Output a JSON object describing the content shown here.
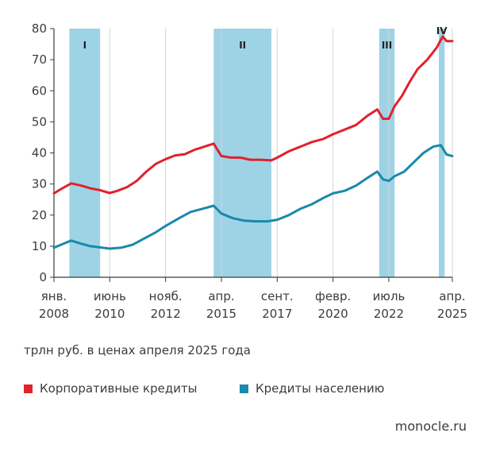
{
  "colors": {
    "corporate": "#e0222d",
    "retail": "#1a89aa",
    "shade": "#9ed3e6",
    "axis": "#3c3c3c"
  },
  "unit_label": "трлн руб. в ценах апреля 2025 года",
  "legend": [
    {
      "label": "Корпоративные кредиты",
      "color": "#e0222d"
    },
    {
      "label": "Кредиты населению",
      "color": "#1a89aa"
    }
  ],
  "source": "monocle.ru",
  "chart_data": {
    "type": "line",
    "title": "",
    "xlabel": "",
    "ylabel": "",
    "xlim": [
      "2008-01",
      "2025-04"
    ],
    "ylim": [
      0,
      80
    ],
    "yticks": [
      0,
      10,
      20,
      30,
      40,
      50,
      60,
      70,
      80
    ],
    "grid": "vertical",
    "xticks": [
      {
        "date": "2008-01",
        "line1": "янв.",
        "line2": "2008"
      },
      {
        "date": "2010-06",
        "line1": "июнь",
        "line2": "2010"
      },
      {
        "date": "2012-11",
        "line1": "нояб.",
        "line2": "2012"
      },
      {
        "date": "2015-04",
        "line1": "апр.",
        "line2": "2015"
      },
      {
        "date": "2017-09",
        "line1": "сент.",
        "line2": "2017"
      },
      {
        "date": "2020-02",
        "line1": "февр.",
        "line2": "2020"
      },
      {
        "date": "2022-07",
        "line1": "июль",
        "line2": "2022"
      },
      {
        "date": "2025-04",
        "line1": "апр.",
        "line2": "2025"
      }
    ],
    "shaded_periods": [
      {
        "label": "I",
        "start": "2008-09",
        "end": "2010-01"
      },
      {
        "label": "II",
        "start": "2014-12",
        "end": "2017-06"
      },
      {
        "label": "III",
        "start": "2022-02",
        "end": "2022-10"
      },
      {
        "label": "IV",
        "start": "2024-09",
        "end": "2024-12"
      }
    ],
    "series": [
      {
        "name": "Корпоративные кредиты",
        "color": "#e0222d",
        "points": [
          [
            "2008-01",
            27.0
          ],
          [
            "2008-05",
            28.5
          ],
          [
            "2008-10",
            30.2
          ],
          [
            "2009-03",
            29.5
          ],
          [
            "2009-08",
            28.6
          ],
          [
            "2010-01",
            28.0
          ],
          [
            "2010-06",
            27.1
          ],
          [
            "2010-10",
            27.8
          ],
          [
            "2011-03",
            29.0
          ],
          [
            "2011-08",
            31.0
          ],
          [
            "2012-01",
            34.0
          ],
          [
            "2012-06",
            36.5
          ],
          [
            "2012-11",
            38.0
          ],
          [
            "2013-04",
            39.2
          ],
          [
            "2013-09",
            39.6
          ],
          [
            "2014-02",
            41.0
          ],
          [
            "2014-07",
            42.0
          ],
          [
            "2014-12",
            43.0
          ],
          [
            "2015-04",
            39.0
          ],
          [
            "2015-09",
            38.5
          ],
          [
            "2016-02",
            38.5
          ],
          [
            "2016-07",
            37.8
          ],
          [
            "2016-12",
            37.8
          ],
          [
            "2017-06",
            37.6
          ],
          [
            "2017-09",
            38.5
          ],
          [
            "2018-03",
            40.5
          ],
          [
            "2018-09",
            42.0
          ],
          [
            "2019-03",
            43.5
          ],
          [
            "2019-09",
            44.5
          ],
          [
            "2020-02",
            46.0
          ],
          [
            "2020-08",
            47.5
          ],
          [
            "2021-02",
            49.0
          ],
          [
            "2021-08",
            52.0
          ],
          [
            "2022-01",
            54.0
          ],
          [
            "2022-04",
            51.0
          ],
          [
            "2022-07",
            51.0
          ],
          [
            "2022-10",
            55.0
          ],
          [
            "2023-02",
            58.5
          ],
          [
            "2023-06",
            63.0
          ],
          [
            "2023-10",
            67.0
          ],
          [
            "2024-03",
            70.0
          ],
          [
            "2024-08",
            74.0
          ],
          [
            "2024-11",
            77.5
          ],
          [
            "2025-01",
            76.0
          ],
          [
            "2025-04",
            76.0
          ]
        ]
      },
      {
        "name": "Кредиты населению",
        "color": "#1a89aa",
        "points": [
          [
            "2008-01",
            9.5
          ],
          [
            "2008-06",
            10.8
          ],
          [
            "2008-10",
            11.8
          ],
          [
            "2009-03",
            10.8
          ],
          [
            "2009-08",
            10.0
          ],
          [
            "2010-01",
            9.6
          ],
          [
            "2010-06",
            9.2
          ],
          [
            "2010-12",
            9.5
          ],
          [
            "2011-06",
            10.5
          ],
          [
            "2011-12",
            12.5
          ],
          [
            "2012-06",
            14.5
          ],
          [
            "2012-11",
            16.5
          ],
          [
            "2013-06",
            19.0
          ],
          [
            "2013-12",
            21.0
          ],
          [
            "2014-06",
            22.0
          ],
          [
            "2014-12",
            23.0
          ],
          [
            "2015-04",
            20.5
          ],
          [
            "2015-10",
            19.0
          ],
          [
            "2016-04",
            18.2
          ],
          [
            "2016-10",
            18.0
          ],
          [
            "2017-04",
            18.0
          ],
          [
            "2017-09",
            18.5
          ],
          [
            "2018-03",
            20.0
          ],
          [
            "2018-09",
            22.0
          ],
          [
            "2019-03",
            23.5
          ],
          [
            "2019-09",
            25.5
          ],
          [
            "2020-02",
            27.0
          ],
          [
            "2020-08",
            27.8
          ],
          [
            "2021-02",
            29.5
          ],
          [
            "2021-08",
            32.0
          ],
          [
            "2022-01",
            34.0
          ],
          [
            "2022-04",
            31.5
          ],
          [
            "2022-07",
            31.0
          ],
          [
            "2022-10",
            32.5
          ],
          [
            "2023-03",
            34.0
          ],
          [
            "2023-08",
            37.0
          ],
          [
            "2024-01",
            40.0
          ],
          [
            "2024-06",
            42.0
          ],
          [
            "2024-10",
            42.5
          ],
          [
            "2025-01",
            39.5
          ],
          [
            "2025-04",
            39.0
          ]
        ]
      }
    ]
  }
}
